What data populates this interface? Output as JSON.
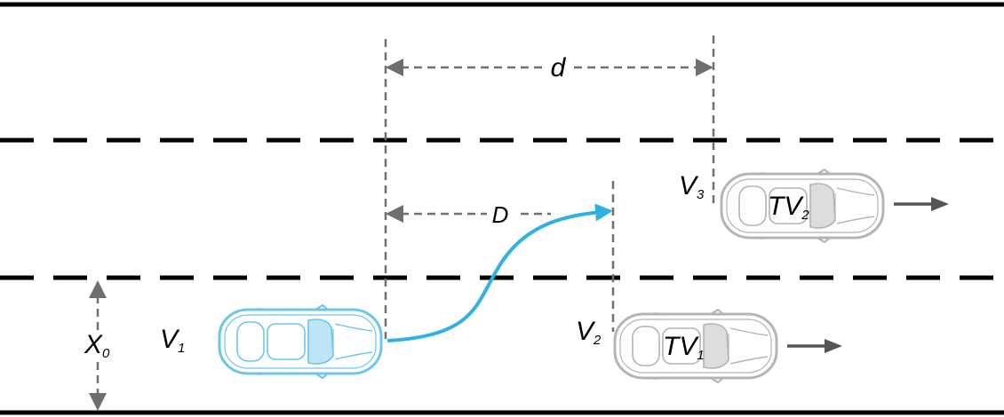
{
  "labels": {
    "d": "d",
    "D": "D",
    "X0_main": "X",
    "X0_sub": "0",
    "V1_main": "V",
    "V1_sub": "1",
    "V2_main": "V",
    "V2_sub": "2",
    "V3_main": "V",
    "V3_sub": "3",
    "TV1_main": "TV",
    "TV1_sub": "1",
    "TV2_main": "TV",
    "TV2_sub": "2"
  },
  "colors": {
    "ego_vehicle": "#6cc6ec",
    "ego_trajectory": "#2fb2e0",
    "target_vehicle": "#b4b4b4",
    "dimension_line": "#707070",
    "road_line": "#000000",
    "motion_arrow": "#555555"
  },
  "icons": {
    "ego": "car-top-view-icon",
    "target": "car-top-view-icon",
    "motion": "arrow-right-icon"
  }
}
